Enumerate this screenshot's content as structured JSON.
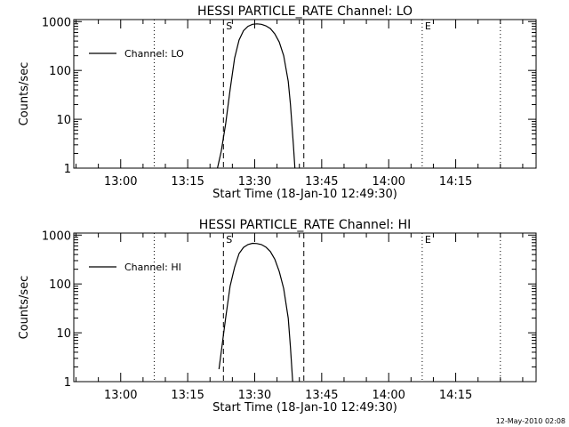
{
  "footer": {
    "date": "12-May-2010 02:08"
  },
  "chart_data": [
    {
      "type": "line",
      "title": "HESSI PARTICLE_RATE Channel: LO",
      "xlabel": "Start Time (18-Jan-10 12:49:30)",
      "ylabel": "Counts/sec",
      "x_ticks": [
        "13:00",
        "13:15",
        "13:30",
        "13:45",
        "14:00",
        "14:15"
      ],
      "y_ticks": [
        "1",
        "10",
        "100",
        "1000"
      ],
      "yscale": "log",
      "xlim": [
        "12:49:30",
        "14:33:00"
      ],
      "ylim": [
        1,
        1100
      ],
      "legend": {
        "entries": [
          "Channel: LO"
        ],
        "placement": "top-left"
      },
      "grid": false,
      "markers": [
        {
          "label": "S",
          "time": "13:23:00",
          "style": "dashed"
        },
        {
          "label": "",
          "time": "13:41:00",
          "style": "dashed"
        },
        {
          "label": "E",
          "time": "14:07:30",
          "style": "dotted"
        },
        {
          "label": "",
          "time": "13:07:30",
          "style": "dotted"
        },
        {
          "label": "",
          "time": "14:25:00",
          "style": "dotted"
        }
      ],
      "series": [
        {
          "name": "Channel: LO",
          "x": [
            "13:21:40",
            "13:22:30",
            "13:23:30",
            "13:24:30",
            "13:25:30",
            "13:26:30",
            "13:27:30",
            "13:28:30",
            "13:29:30",
            "13:30:30",
            "13:31:30",
            "13:32:30",
            "13:33:30",
            "13:34:30",
            "13:35:30",
            "13:36:30",
            "13:37:30",
            "13:38:00",
            "13:38:40",
            "13:39:00"
          ],
          "y": [
            1,
            2.2,
            8,
            40,
            180,
            420,
            650,
            800,
            880,
            900,
            880,
            820,
            720,
            560,
            380,
            200,
            60,
            20,
            3,
            1
          ]
        }
      ]
    },
    {
      "type": "line",
      "title": "HESSI PARTICLE_RATE Channel: HI",
      "xlabel": "Start Time (18-Jan-10 12:49:30)",
      "ylabel": "Counts/sec",
      "x_ticks": [
        "13:00",
        "13:15",
        "13:30",
        "13:45",
        "14:00",
        "14:15"
      ],
      "y_ticks": [
        "1",
        "10",
        "100",
        "1000"
      ],
      "yscale": "log",
      "xlim": [
        "12:49:30",
        "14:33:00"
      ],
      "ylim": [
        1,
        1100
      ],
      "legend": {
        "entries": [
          "Channel: HI"
        ],
        "placement": "top-left"
      },
      "grid": false,
      "markers": [
        {
          "label": "S",
          "time": "13:23:00",
          "style": "dashed"
        },
        {
          "label": "",
          "time": "13:41:00",
          "style": "dashed"
        },
        {
          "label": "E",
          "time": "14:07:30",
          "style": "dotted"
        },
        {
          "label": "",
          "time": "13:07:30",
          "style": "dotted"
        },
        {
          "label": "",
          "time": "14:25:00",
          "style": "dotted"
        }
      ],
      "series": [
        {
          "name": "Channel: HI",
          "x": [
            "13:22:00",
            "13:22:30",
            "13:23:30",
            "13:24:30",
            "13:25:30",
            "13:26:30",
            "13:27:30",
            "13:28:30",
            "13:29:30",
            "13:30:30",
            "13:31:30",
            "13:32:30",
            "13:33:30",
            "13:34:30",
            "13:35:30",
            "13:36:30",
            "13:37:30",
            "13:38:00",
            "13:38:30"
          ],
          "y": [
            1.8,
            4,
            20,
            90,
            220,
            420,
            560,
            640,
            680,
            670,
            640,
            570,
            460,
            320,
            180,
            80,
            20,
            5,
            1
          ]
        }
      ]
    }
  ]
}
